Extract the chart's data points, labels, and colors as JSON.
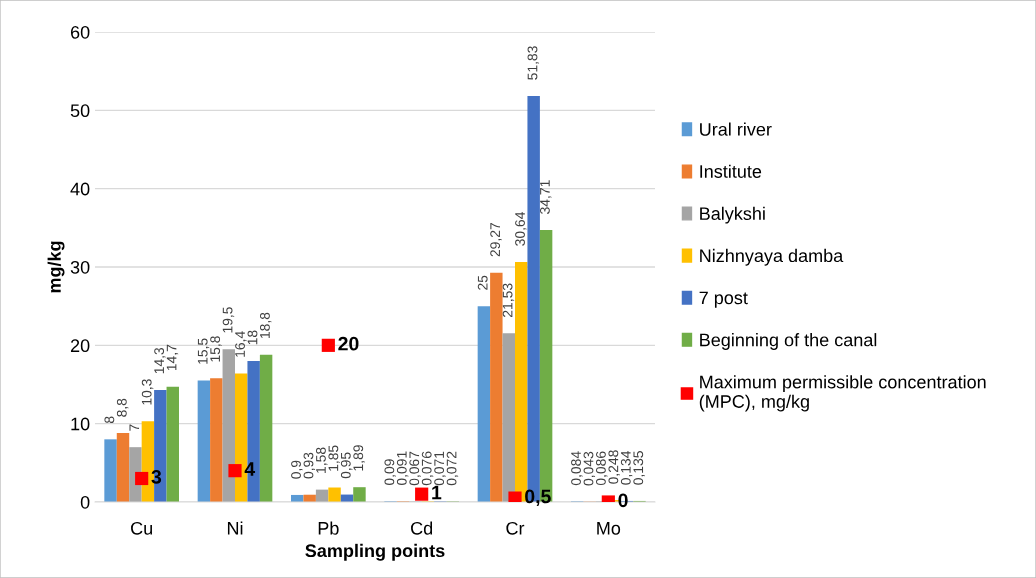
{
  "chart_data": {
    "type": "bar",
    "xlabel": "Sampling points",
    "ylabel": "mg/kg",
    "categories": [
      "Cu",
      "Ni",
      "Pb",
      "Cd",
      "Cr",
      "Mo"
    ],
    "series": [
      {
        "name": "Ural river",
        "color": "#5b9bd5",
        "values": [
          8,
          15.5,
          0.9,
          0.09,
          25,
          0.084
        ],
        "value_labels": [
          "8",
          "15,5",
          "0,9",
          "0,09",
          "25",
          "0,084"
        ]
      },
      {
        "name": "Institute",
        "color": "#ed7d31",
        "values": [
          8.8,
          15.8,
          0.93,
          0.091,
          29.27,
          0.043
        ],
        "value_labels": [
          "8,8",
          "15,8",
          "0,93",
          "0,091",
          "29,27",
          "0,043"
        ]
      },
      {
        "name": "Balykshi",
        "color": "#a5a5a5",
        "values": [
          7,
          19.5,
          1.58,
          0.067,
          21.53,
          0.086
        ],
        "value_labels": [
          "7",
          "19,5",
          "1,58",
          "0,067",
          "21,53",
          "0,086"
        ]
      },
      {
        "name": "Nizhnyaya damba",
        "color": "#ffc000",
        "values": [
          10.3,
          16.4,
          1.85,
          0.076,
          30.64,
          0.248
        ],
        "value_labels": [
          "10,3",
          "16,4",
          "1,85",
          "0,076",
          "30,64",
          "0,248"
        ]
      },
      {
        "name": "7 post",
        "color": "#4472c4",
        "values": [
          14.3,
          18,
          0.95,
          0.071,
          51.83,
          0.134
        ],
        "value_labels": [
          "14,3",
          "18",
          "0,95",
          "0,071",
          "51,83",
          "0,134"
        ]
      },
      {
        "name": "Beginning of the canal",
        "color": "#70ad47",
        "values": [
          14.7,
          18.8,
          1.89,
          0.072,
          34.71,
          0.135
        ],
        "value_labels": [
          "14,7",
          "18,8",
          "1,89",
          "0,072",
          "34,71",
          "0,135"
        ]
      },
      {
        "name": "Maximum permissible concentration (MPC), mg/kg",
        "type": "scatter",
        "marker": "square",
        "color": "#ff0000",
        "x": [
          "Cu",
          "Ni",
          "Pb",
          "Cd",
          "Cr",
          "Mo"
        ],
        "values": [
          3,
          4,
          20,
          1,
          0.5,
          0
        ],
        "value_labels": [
          "3",
          "4",
          "20",
          "1",
          "0,5",
          "0"
        ]
      }
    ],
    "ylim": [
      0,
      60
    ],
    "yticks": [
      0,
      10,
      20,
      30,
      40,
      50,
      60
    ],
    "grid": "y",
    "legend": "right"
  }
}
